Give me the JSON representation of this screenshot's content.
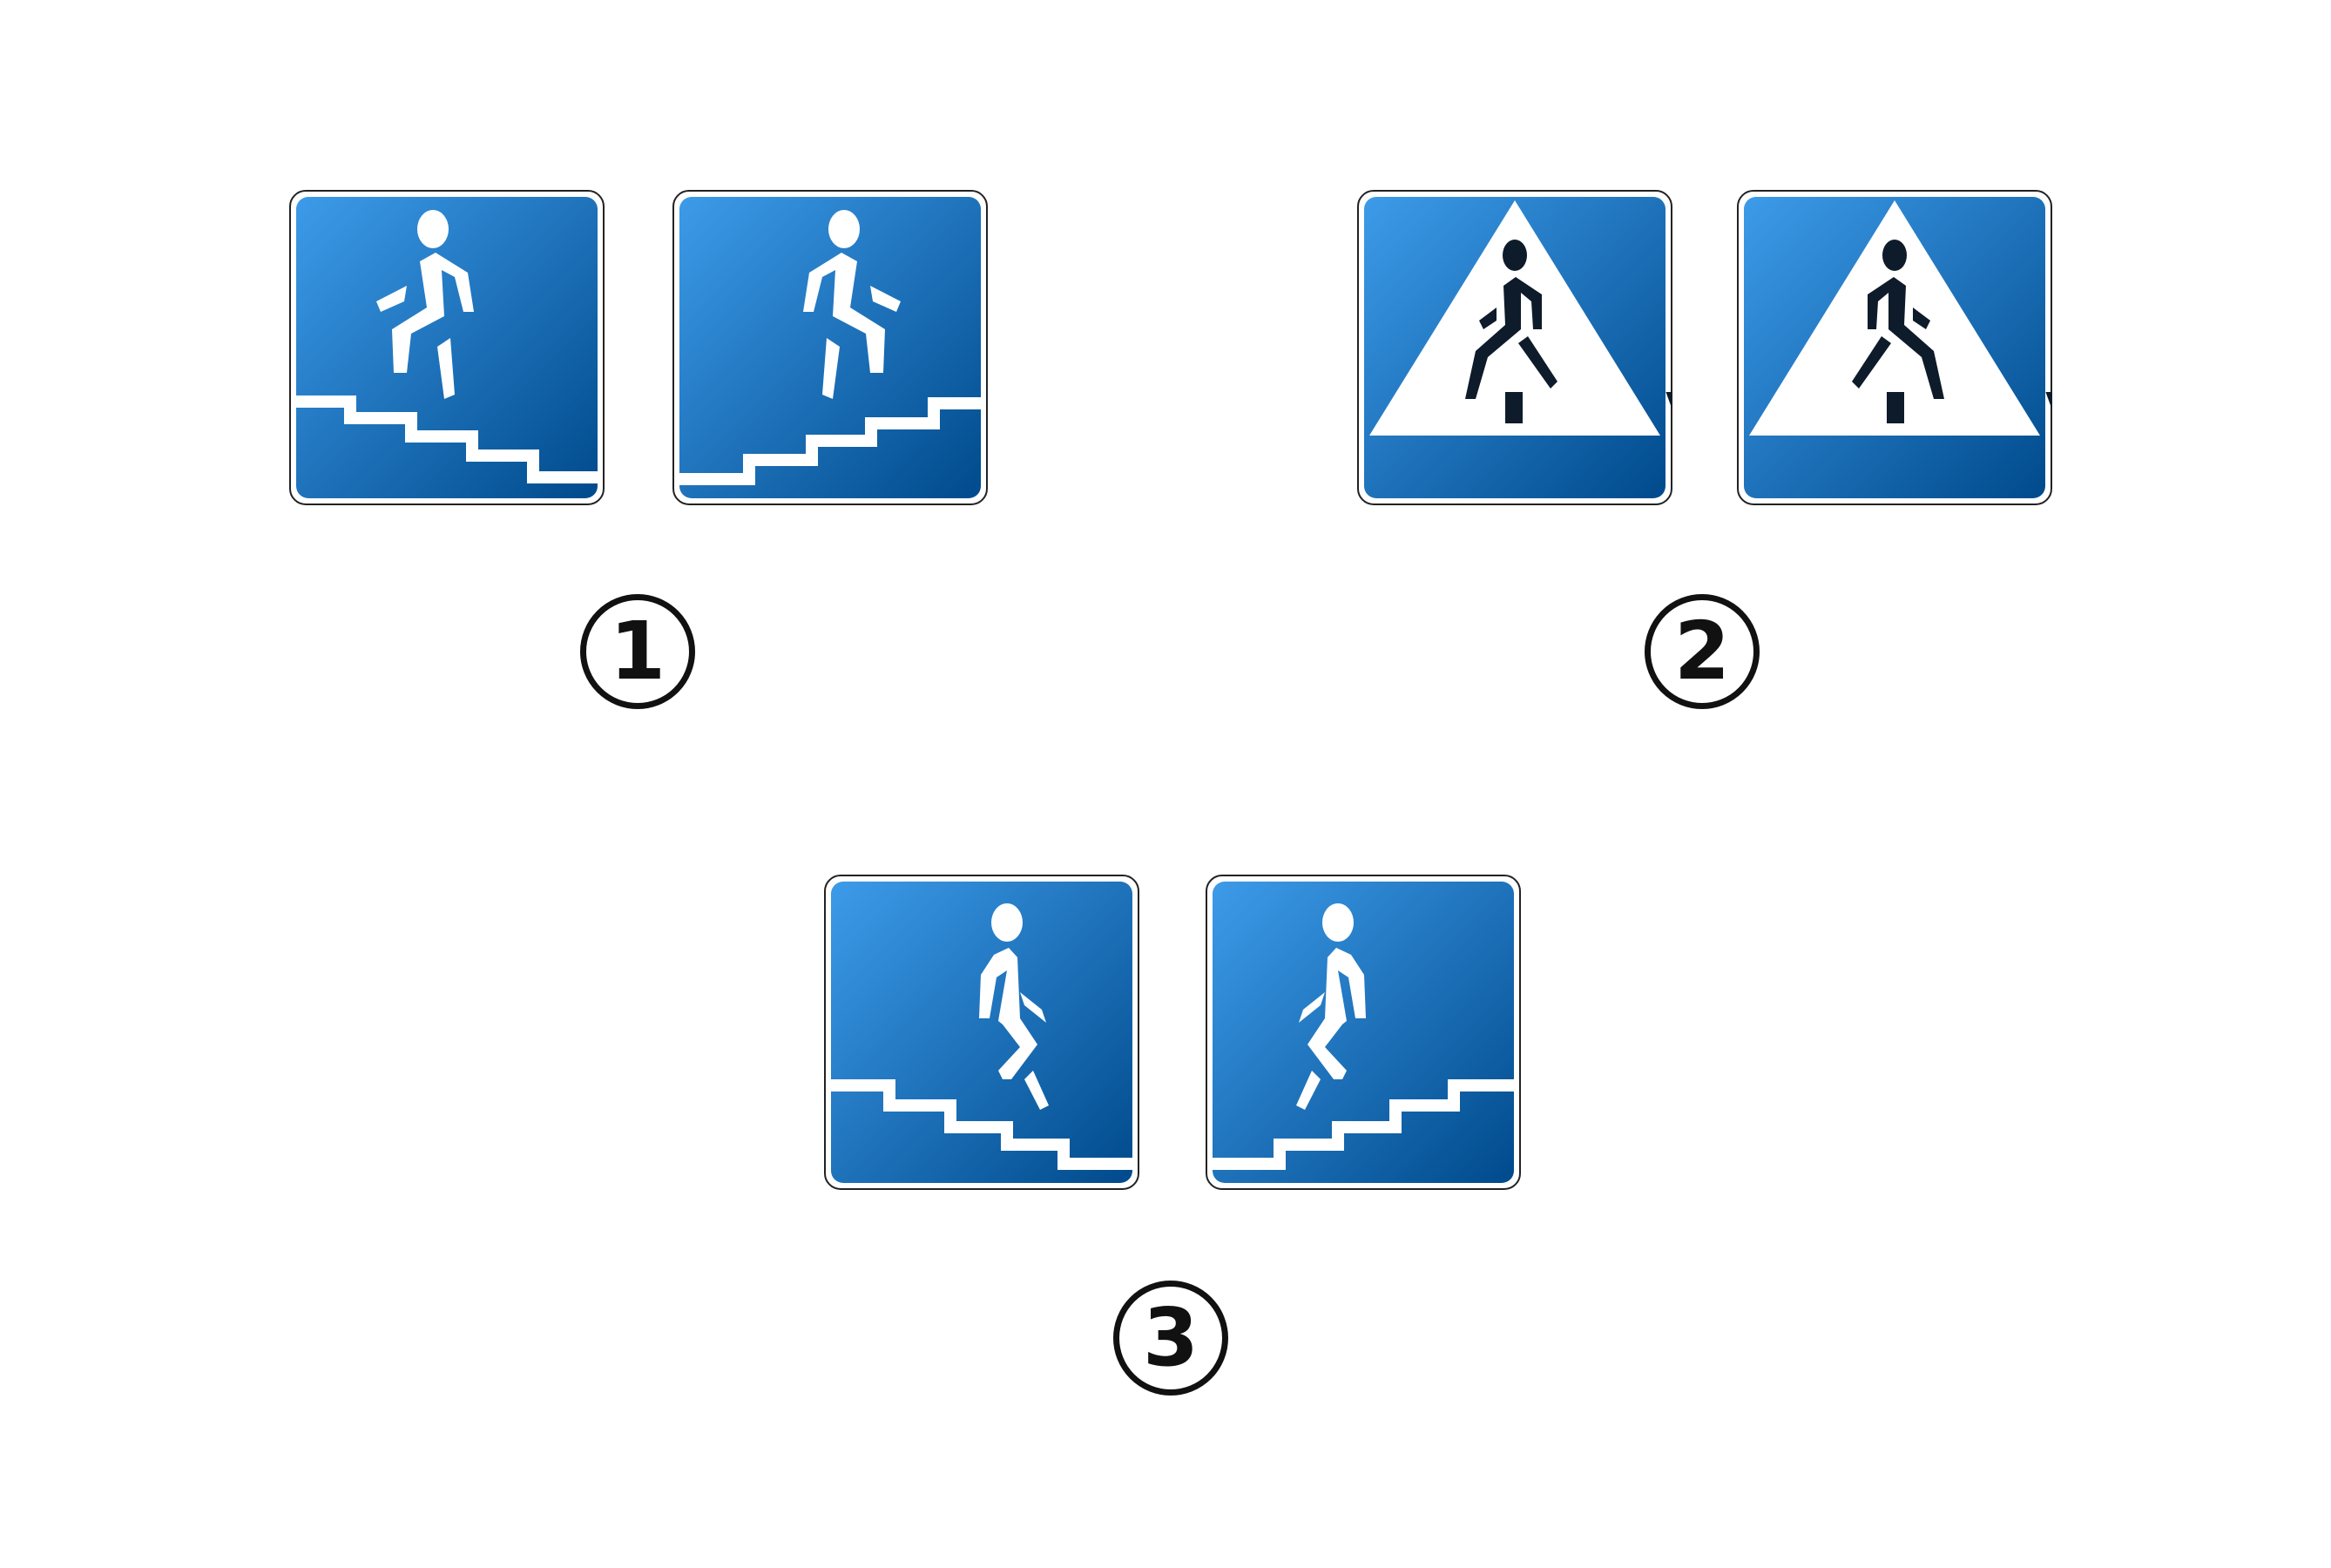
{
  "groups": [
    {
      "id": 1,
      "label": "1",
      "signs": [
        "underpass-stairs-up-right",
        "underpass-stairs-down-right"
      ]
    },
    {
      "id": 2,
      "label": "2",
      "signs": [
        "pedestrian-crossing-right",
        "pedestrian-crossing-left"
      ]
    },
    {
      "id": 3,
      "label": "3",
      "signs": [
        "overpass-stairs-down-right",
        "overpass-stairs-up-right"
      ]
    }
  ],
  "colors": {
    "blue_light": "#3d9be9",
    "blue_dark": "#004a8c",
    "white": "#ffffff",
    "symbol_dark": "#0d1b2a",
    "border": "#222222"
  }
}
